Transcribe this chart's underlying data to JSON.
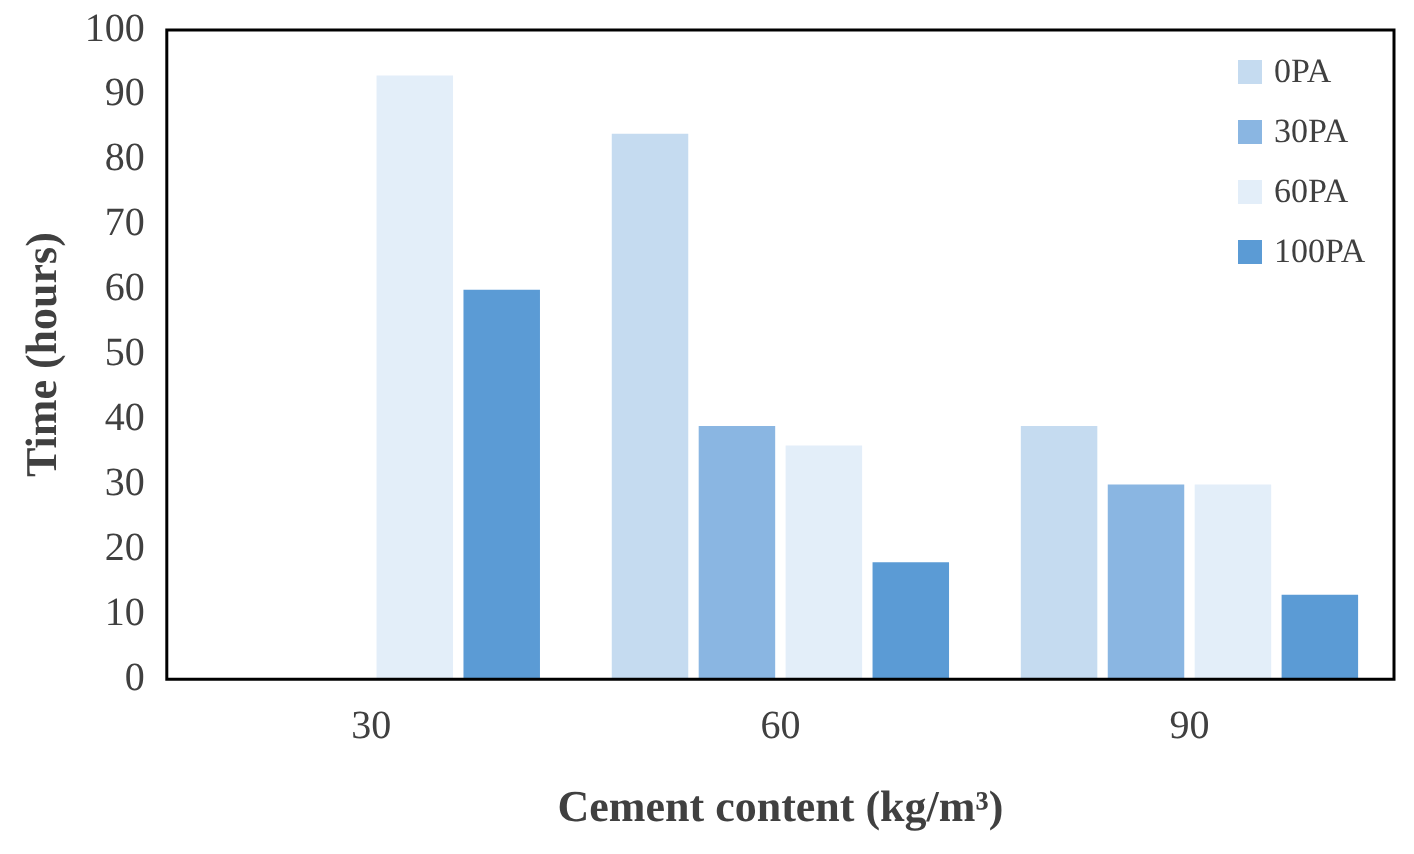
{
  "chart_data": {
    "type": "bar",
    "xlabel": "Cement content (kg/m³)",
    "ylabel": "Time (hours)",
    "categories": [
      "30",
      "60",
      "90"
    ],
    "series": [
      {
        "name": "0PA",
        "color": "#c5dbf0",
        "values": [
          null,
          84,
          39
        ]
      },
      {
        "name": "30PA",
        "color": "#8ab6e2",
        "values": [
          null,
          39,
          30
        ]
      },
      {
        "name": "60PA",
        "color": "#e3eef9",
        "values": [
          93,
          36,
          30
        ]
      },
      {
        "name": "100PA",
        "color": "#5b9bd5",
        "values": [
          60,
          18,
          13
        ]
      }
    ],
    "ylim": [
      0,
      100
    ],
    "yticks": [
      0,
      10,
      20,
      30,
      40,
      50,
      60,
      70,
      80,
      90,
      100
    ],
    "grid": false,
    "legend": "top right"
  }
}
